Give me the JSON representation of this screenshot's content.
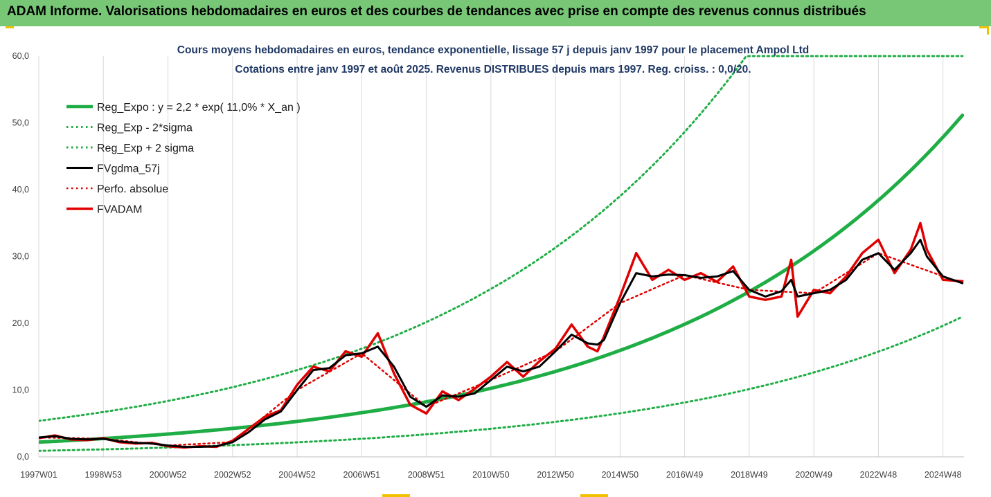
{
  "page": {
    "title": "ADAM Informe. Valorisations hebdomadaires en euros et des courbes de tendances avec prise en compte des revenus connus distribués"
  },
  "chart_data": {
    "type": "line",
    "subtitle_lines": [
      "Cours moyens hebdomadaires en euros, tendance exponentielle, lissage 57 j depuis janv 1997 pour le placement Ampol Ltd",
      "Cotations entre janv 1997 et août 2025.  Revenus DISTRIBUES depuis mars 1997. Reg. croiss. : 0,0/20."
    ],
    "x_ticks": [
      "1997W01",
      "1998W53",
      "2000W52",
      "2002W52",
      "2004W52",
      "2006W51",
      "2008W51",
      "2010W50",
      "2012W50",
      "2014W50",
      "2016W49",
      "2018W49",
      "2020W49",
      "2022W48",
      "2024W48"
    ],
    "x_tick_years": [
      1997.0,
      1999.0,
      2001.0,
      2003.0,
      2005.0,
      2007.0,
      2009.0,
      2011.0,
      2013.0,
      2015.0,
      2017.0,
      2019.0,
      2021.0,
      2023.0,
      2025.0
    ],
    "xlim": [
      1997.0,
      2025.65
    ],
    "y_ticks": [
      "0,0",
      "10,0",
      "20,0",
      "30,0",
      "40,0",
      "50,0",
      "60,0"
    ],
    "y_tick_values": [
      0,
      10,
      20,
      30,
      40,
      50,
      60
    ],
    "ylim": [
      0,
      60
    ],
    "grid": "vertical",
    "legend_position": "top-left",
    "regression": {
      "a": 2.2,
      "rate": 0.11,
      "x0": 1997.0
    },
    "series": [
      {
        "name": "Reg_Expo : y = 2,2 * exp( 11,0% *  X_an )",
        "style": "solid",
        "color": "#1fad45",
        "width": 5,
        "x": [
          1997.0,
          1999.0,
          2001.0,
          2003.0,
          2005.0,
          2007.0,
          2009.0,
          2011.0,
          2013.0,
          2015.0,
          2017.0,
          2019.0,
          2021.0,
          2023.0,
          2025.6
        ],
        "y": [
          2.2,
          2.7,
          3.4,
          4.3,
          5.3,
          6.6,
          8.2,
          10.2,
          12.7,
          15.8,
          19.6,
          24.4,
          30.4,
          37.8,
          51.8
        ]
      },
      {
        "name": "Reg_Exp - 2*sigma",
        "style": "dotted",
        "color": "#1fad45",
        "width": 3,
        "x": [
          1997.0,
          1999.0,
          2001.0,
          2003.0,
          2005.0,
          2007.0,
          2009.0,
          2011.0,
          2013.0,
          2015.0,
          2017.0,
          2019.0,
          2021.0,
          2023.0,
          2025.6
        ],
        "y": [
          0.9,
          1.1,
          1.4,
          1.8,
          2.2,
          2.7,
          3.3,
          4.1,
          5.1,
          6.3,
          7.9,
          9.8,
          12.3,
          15.3,
          20.9
        ]
      },
      {
        "name": "Reg_Exp + 2 sigma",
        "style": "dotted",
        "color": "#1fad45",
        "width": 3,
        "x": [
          1997.0,
          1999.0,
          2001.0,
          2003.0,
          2005.0,
          2007.0,
          2009.0,
          2011.0,
          2013.0,
          2015.0,
          2017.0,
          2019.0,
          2021.0,
          2023.0,
          2025.6
        ],
        "y": [
          5.4,
          6.7,
          8.4,
          10.4,
          13.0,
          16.2,
          20.2,
          25.1,
          31.3,
          38.9,
          48.5,
          60.0,
          60.0,
          60.0,
          60.0
        ]
      },
      {
        "name": "FVgdma_57j",
        "style": "solid",
        "color": "#000000",
        "width": 3,
        "x": [
          1997.0,
          1997.5,
          1998.0,
          1998.5,
          1999.0,
          1999.5,
          2000.0,
          2000.5,
          2001.0,
          2001.5,
          2002.0,
          2002.5,
          2003.0,
          2003.5,
          2004.0,
          2004.5,
          2005.0,
          2005.5,
          2006.0,
          2006.5,
          2007.0,
          2007.5,
          2008.0,
          2008.5,
          2009.0,
          2009.5,
          2010.0,
          2010.5,
          2011.0,
          2011.5,
          2012.0,
          2012.5,
          2013.0,
          2013.5,
          2014.0,
          2014.3,
          2014.5,
          2015.0,
          2015.5,
          2016.0,
          2016.5,
          2017.0,
          2017.5,
          2018.0,
          2018.5,
          2019.0,
          2019.5,
          2020.0,
          2020.3,
          2020.5,
          2021.0,
          2021.5,
          2022.0,
          2022.5,
          2023.0,
          2023.5,
          2024.0,
          2024.3,
          2024.5,
          2025.0,
          2025.6
        ],
        "y": [
          2.9,
          3.1,
          2.7,
          2.6,
          2.7,
          2.3,
          2.1,
          2.0,
          1.7,
          1.5,
          1.5,
          1.6,
          2.2,
          3.7,
          5.6,
          6.8,
          10.0,
          13.0,
          13.3,
          15.2,
          15.5,
          16.5,
          13.5,
          9.0,
          7.5,
          9.2,
          9.0,
          9.5,
          11.5,
          13.5,
          12.8,
          13.5,
          15.8,
          18.3,
          17.0,
          16.8,
          17.5,
          23.0,
          27.5,
          27.0,
          27.3,
          27.2,
          26.8,
          27.0,
          27.8,
          25.0,
          24.0,
          24.8,
          26.5,
          24.0,
          24.5,
          25.0,
          26.5,
          29.5,
          30.5,
          28.0,
          30.5,
          32.5,
          30.0,
          27.0,
          26.0
        ]
      },
      {
        "name": "Perfo. absolue",
        "style": "dotted",
        "color": "#e00000",
        "width": 2.5,
        "x": [
          1997.0,
          1999.0,
          2001.0,
          2003.0,
          2005.0,
          2007.0,
          2009.0,
          2011.0,
          2013.0,
          2015.0,
          2017.0,
          2019.0,
          2021.0,
          2023.0,
          2025.6
        ],
        "y": [
          2.9,
          2.7,
          1.7,
          2.2,
          10.0,
          15.5,
          7.5,
          11.5,
          15.8,
          23.0,
          27.2,
          25.0,
          24.5,
          30.5,
          26.0
        ]
      },
      {
        "name": "FVADAM",
        "style": "solid",
        "color": "#e00000",
        "width": 3.5,
        "x": [
          1997.0,
          1997.5,
          1998.0,
          1998.5,
          1999.0,
          1999.5,
          2000.0,
          2000.5,
          2001.0,
          2001.5,
          2002.0,
          2002.5,
          2003.0,
          2003.5,
          2004.0,
          2004.5,
          2005.0,
          2005.5,
          2006.0,
          2006.5,
          2007.0,
          2007.5,
          2008.0,
          2008.5,
          2009.0,
          2009.5,
          2010.0,
          2010.5,
          2011.0,
          2011.5,
          2012.0,
          2012.5,
          2013.0,
          2013.5,
          2014.0,
          2014.3,
          2014.5,
          2015.0,
          2015.5,
          2016.0,
          2016.5,
          2017.0,
          2017.5,
          2018.0,
          2018.5,
          2019.0,
          2019.5,
          2020.0,
          2020.3,
          2020.5,
          2021.0,
          2021.5,
          2022.0,
          2022.5,
          2023.0,
          2023.5,
          2024.0,
          2024.3,
          2024.5,
          2025.0,
          2025.6
        ],
        "y": [
          2.8,
          3.2,
          2.6,
          2.5,
          2.8,
          2.2,
          2.0,
          2.1,
          1.6,
          1.4,
          1.6,
          1.5,
          2.4,
          4.2,
          6.0,
          7.0,
          10.8,
          13.5,
          12.8,
          15.8,
          15.0,
          18.5,
          12.5,
          7.8,
          6.5,
          9.8,
          8.5,
          10.2,
          12.0,
          14.2,
          12.0,
          14.3,
          16.2,
          19.8,
          16.5,
          15.8,
          18.0,
          24.0,
          30.5,
          26.5,
          28.0,
          26.5,
          27.5,
          26.2,
          28.5,
          24.0,
          23.5,
          24.0,
          29.5,
          21.0,
          25.0,
          24.5,
          27.0,
          30.5,
          32.5,
          27.5,
          31.0,
          35.0,
          31.0,
          26.5,
          26.3
        ]
      }
    ]
  }
}
